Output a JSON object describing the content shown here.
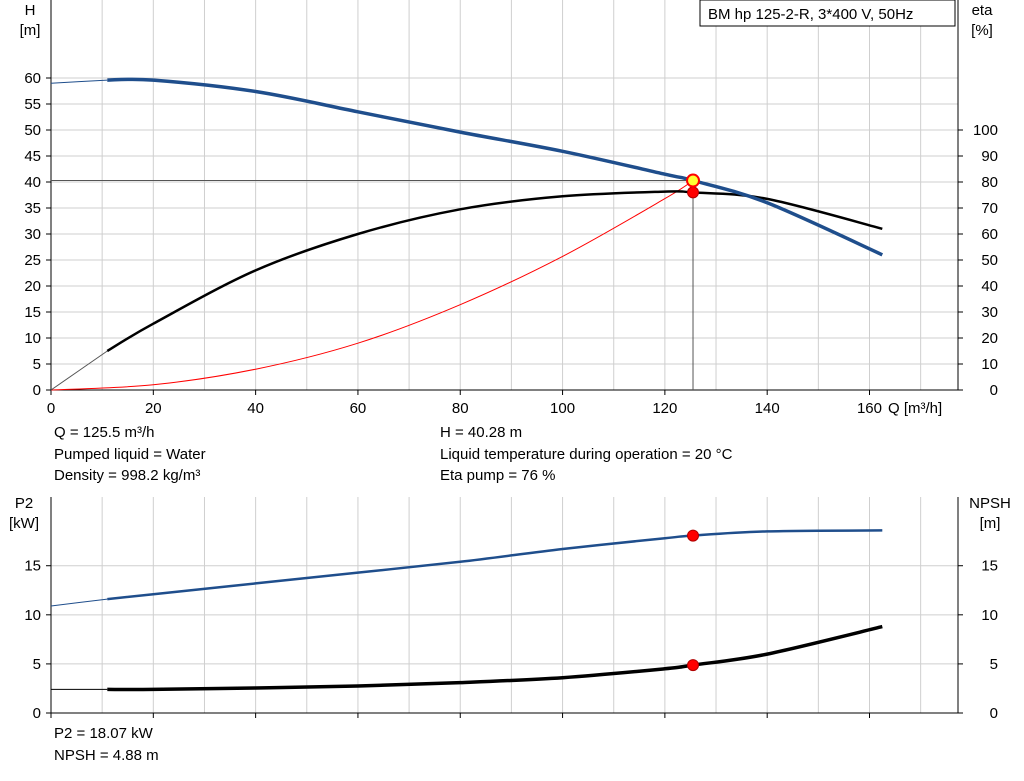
{
  "chart_data": [
    {
      "type": "line",
      "x_axis": {
        "label": "Q [m³/h]",
        "range": [
          0,
          177.3
        ],
        "ticks": [
          0,
          20,
          40,
          60,
          80,
          100,
          120,
          140,
          160
        ]
      },
      "y_left": {
        "label_line1": "H",
        "label_line2": "[m]",
        "range": [
          0,
          75
        ],
        "ticks": [
          0,
          5,
          10,
          15,
          20,
          25,
          30,
          35,
          40,
          45,
          50,
          55,
          60
        ]
      },
      "y_right": {
        "label_line1": "eta",
        "label_line2": "[%]",
        "range": [
          0,
          150
        ],
        "ticks": [
          0,
          10,
          20,
          30,
          40,
          50,
          60,
          70,
          80,
          90,
          100
        ]
      },
      "grid": true,
      "title_box": "BM hp 125-2-R, 3*400 V, 50Hz",
      "series": [
        {
          "key": "H",
          "axis": "left",
          "color": "#1f4e8c",
          "x": [
            0,
            11,
            20,
            40,
            60,
            80,
            100,
            120,
            125.5,
            140,
            162.5
          ],
          "y": [
            59,
            59.6,
            59.6,
            57.4,
            53.5,
            49.6,
            45.9,
            41.5,
            40.28,
            36,
            26
          ]
        },
        {
          "key": "eta",
          "axis": "right",
          "color": "#000000",
          "x": [
            0,
            11,
            20,
            40,
            60,
            80,
            100,
            120,
            125.5,
            140,
            162.5
          ],
          "y": [
            0,
            15,
            25.5,
            46,
            60,
            69.5,
            74.5,
            76.3,
            76,
            73.5,
            62
          ]
        },
        {
          "key": "system",
          "axis": "left",
          "color": "#ff0000",
          "x": [
            0,
            20,
            40,
            60,
            80,
            100,
            120,
            125.5
          ],
          "y": [
            0,
            1,
            4,
            9,
            16.4,
            25.7,
            36.8,
            40.28
          ]
        }
      ],
      "operating_point": {
        "Q": 125.5,
        "H": 40.28,
        "eta": 76
      }
    },
    {
      "type": "line",
      "x_axis": {
        "range": [
          0,
          177.3
        ],
        "ticks": [
          0,
          20,
          40,
          60,
          80,
          100,
          120,
          140,
          160
        ]
      },
      "y_left": {
        "label_line1": "P2",
        "label_line2": "[kW]",
        "range": [
          0,
          22
        ],
        "ticks": [
          0,
          5,
          10,
          15
        ]
      },
      "y_right": {
        "label_line1": "NPSH",
        "label_line2": "[m]",
        "range": [
          0,
          22
        ],
        "ticks": [
          0,
          5,
          10,
          15
        ]
      },
      "grid": true,
      "series": [
        {
          "key": "P2",
          "axis": "left",
          "color": "#1f4e8c",
          "x": [
            0,
            11,
            20,
            40,
            60,
            80,
            100,
            120,
            125.5,
            140,
            162.5
          ],
          "y": [
            10.9,
            11.6,
            12.1,
            13.2,
            14.3,
            15.4,
            16.7,
            17.8,
            18.07,
            18.5,
            18.6
          ]
        },
        {
          "key": "NPSH",
          "axis": "right",
          "color": "#000000",
          "x": [
            0,
            11,
            20,
            40,
            60,
            80,
            100,
            120,
            125.5,
            140,
            162.5
          ],
          "y": [
            2.4,
            2.4,
            2.4,
            2.55,
            2.75,
            3.1,
            3.6,
            4.5,
            4.88,
            6.0,
            8.8
          ]
        }
      ],
      "operating_point": {
        "Q": 125.5,
        "P2": 18.07,
        "NPSH": 4.88
      }
    }
  ],
  "info_top": {
    "q": "Q = 125.5 m³/h",
    "liquid": "Pumped liquid = Water",
    "density": "Density = 998.2 kg/m³",
    "h": "H = 40.28 m",
    "temp": "Liquid temperature during operation = 20 °C",
    "eta": "Eta pump = 76 %"
  },
  "info_bottom": {
    "p2": "P2 = 18.07 kW",
    "npsh": "NPSH = 4.88 m"
  }
}
